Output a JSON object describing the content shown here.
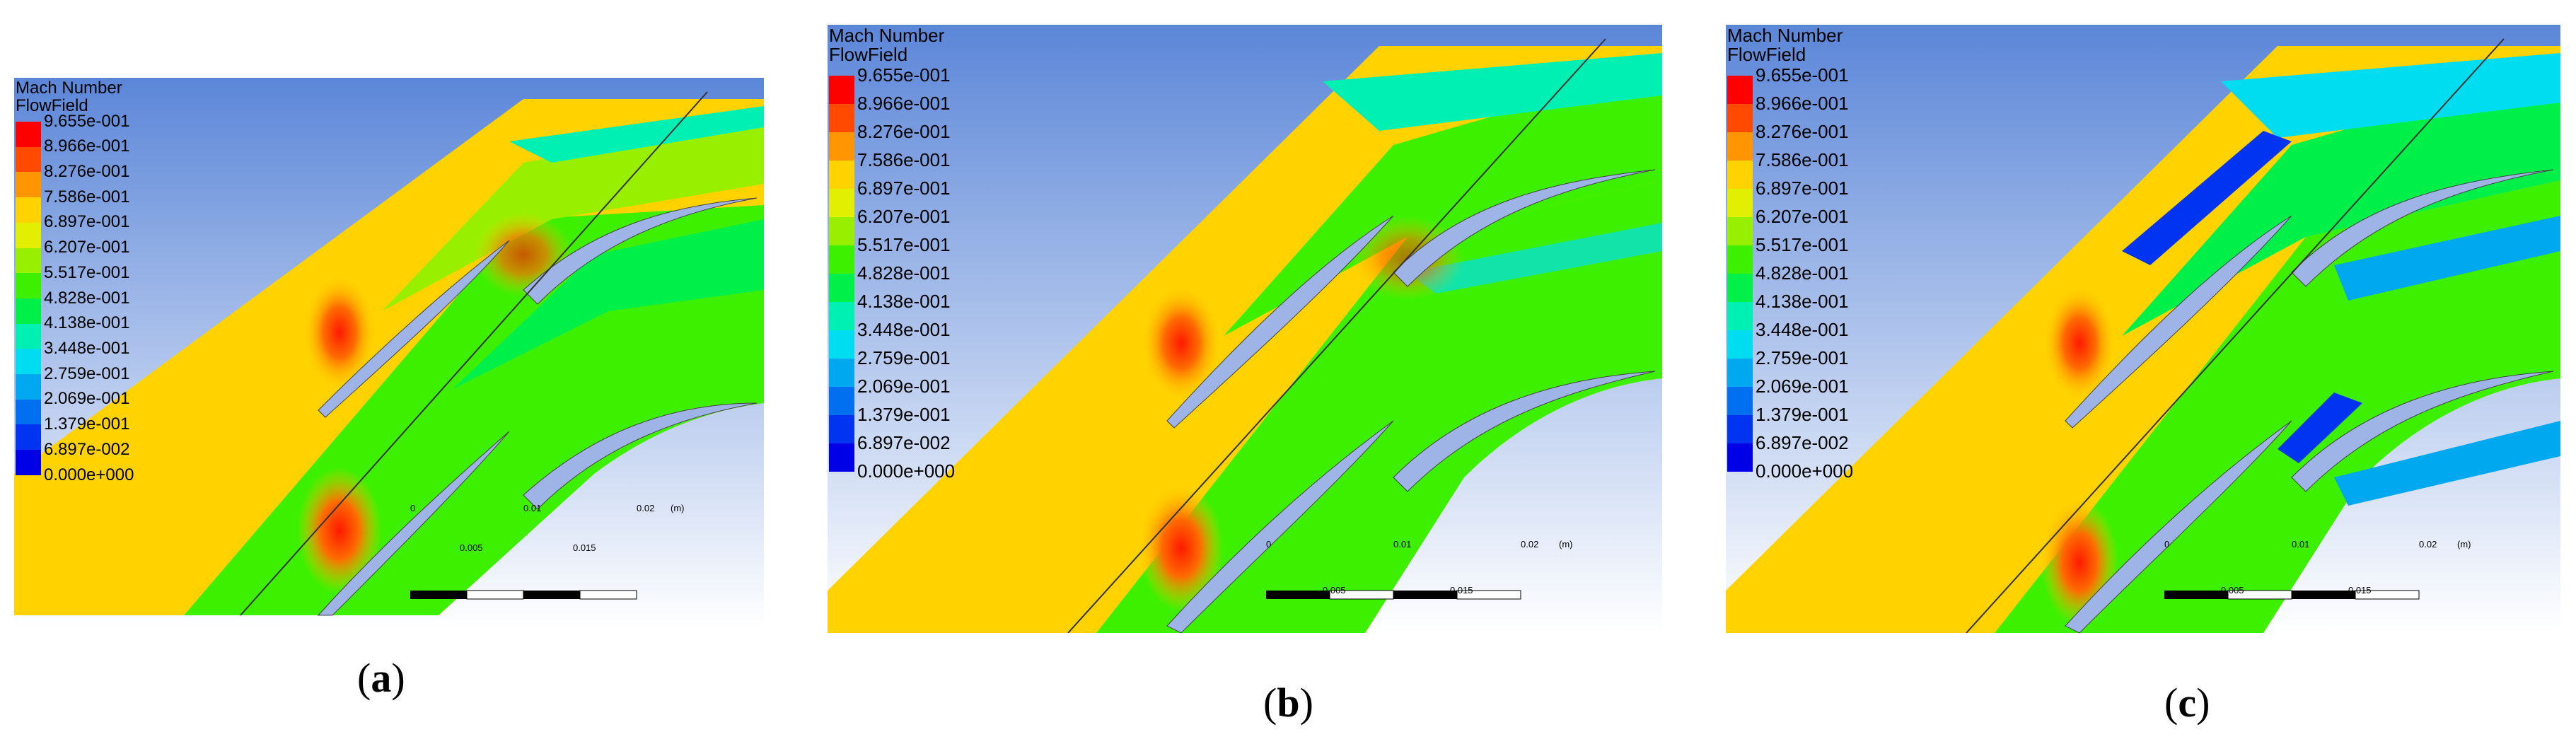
{
  "panels": [
    {
      "id": "a",
      "legend_title_line1": "Mach Number",
      "legend_title_line2": "FlowField",
      "caption": "a",
      "scale_top": [
        "0",
        "0.01",
        "0.02",
        "(m)"
      ],
      "scale_bottom": [
        "0.005",
        "0.015"
      ]
    },
    {
      "id": "b",
      "legend_title_line1": "Mach Number",
      "legend_title_line2": "FlowField",
      "caption": "b",
      "scale_top": [
        "0",
        "0.01",
        "0.02",
        "(m)"
      ],
      "scale_bottom": [
        "0.005",
        "0.015"
      ]
    },
    {
      "id": "c",
      "legend_title_line1": "Mach Number",
      "legend_title_line2": "FlowField",
      "caption": "c",
      "scale_top": [
        "0",
        "0.01",
        "0.02",
        "(m)"
      ],
      "scale_bottom": [
        "0.005",
        "0.015"
      ]
    }
  ],
  "legend_ticks": [
    "9.655e-001",
    "8.966e-001",
    "8.276e-001",
    "7.586e-001",
    "6.897e-001",
    "6.207e-001",
    "5.517e-001",
    "4.828e-001",
    "4.138e-001",
    "3.448e-001",
    "2.759e-001",
    "2.069e-001",
    "1.379e-001",
    "6.897e-002",
    "0.000e+000"
  ],
  "legend_colors": [
    "#ff0000",
    "#ff4a00",
    "#ff9500",
    "#ffd200",
    "#e2f000",
    "#98f000",
    "#3cf000",
    "#00f04a",
    "#00f0b4",
    "#00ddf0",
    "#00a8f0",
    "#0070f0",
    "#0034f0",
    "#0000e6"
  ]
}
